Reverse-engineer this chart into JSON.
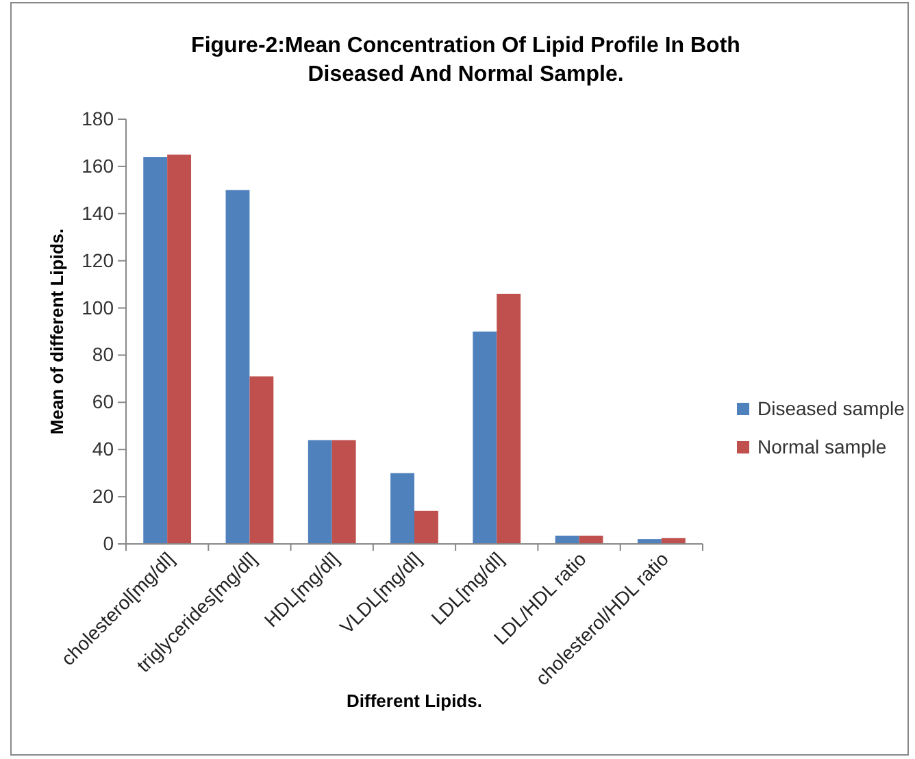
{
  "chart_data": {
    "type": "bar",
    "title": "Figure-2:Mean Concentration Of Lipid Profile In Both Diseased And Normal Sample.",
    "xlabel": "Different Lipids.",
    "ylabel": "Mean of different Lipids.",
    "categories": [
      "cholesterol[mg/dl]",
      "triglycerides[mg/dl]",
      "HDL[mg/dl]",
      "VLDL[mg/dl]",
      "LDL[mg/dl]",
      "LDL/HDL ratio",
      "cholesterol/HDL ratio"
    ],
    "series": [
      {
        "name": "Diseased sample",
        "color": "#4f81bd",
        "values": [
          164,
          150,
          44,
          30,
          90,
          3.5,
          2
        ]
      },
      {
        "name": "Normal sample",
        "color": "#c0504d",
        "values": [
          165,
          71,
          44,
          14,
          106,
          3.5,
          2.5
        ]
      }
    ],
    "ylim": [
      0,
      180
    ],
    "yticks": [
      0,
      20,
      40,
      60,
      80,
      100,
      120,
      140,
      160,
      180
    ],
    "grid": false,
    "legend": "right"
  }
}
